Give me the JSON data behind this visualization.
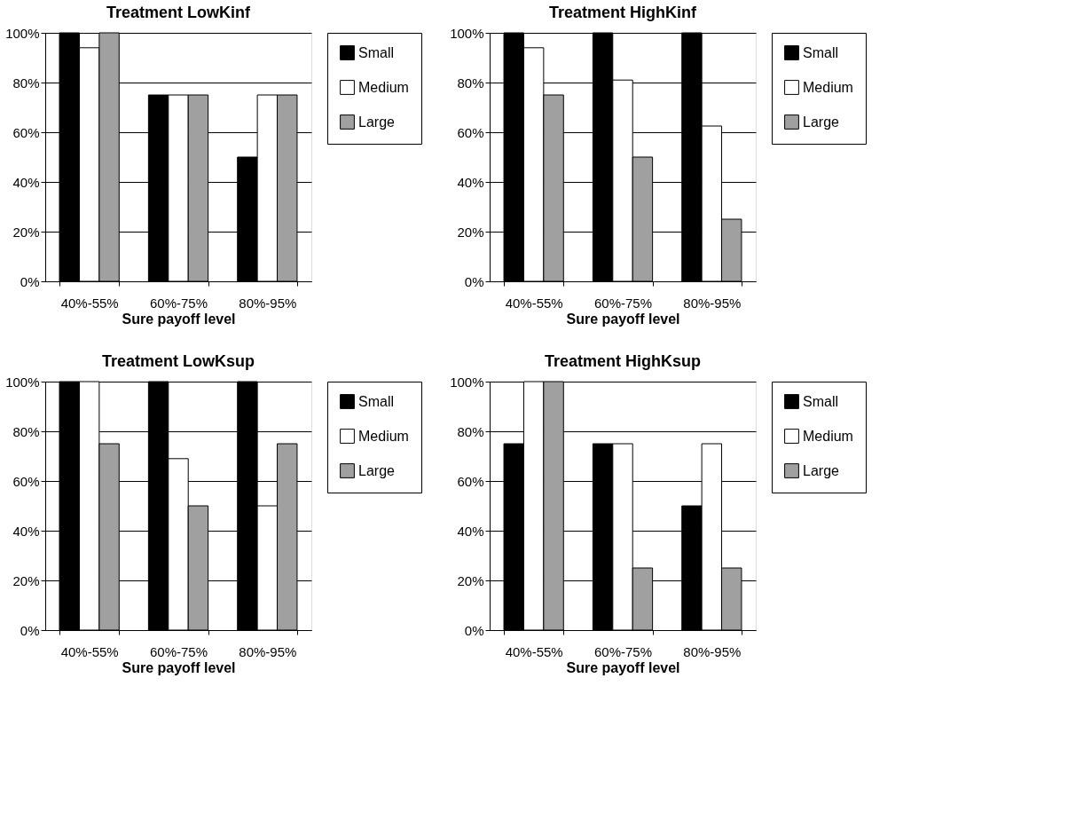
{
  "chart_data": [
    {
      "type": "bar",
      "title": "Treatment LowKinf",
      "xlabel": "Sure payoff level",
      "categories": [
        "40%-55%",
        "60%-75%",
        "80%-95%"
      ],
      "series": [
        {
          "name": "Small",
          "color": "#000000",
          "values": [
            100,
            75,
            50
          ]
        },
        {
          "name": "Medium",
          "color": "#ffffff",
          "values": [
            94,
            75,
            75
          ]
        },
        {
          "name": "Large",
          "color": "#a0a0a0",
          "values": [
            100,
            75,
            75
          ]
        }
      ],
      "ylim": [
        0,
        100
      ],
      "yticks": [
        {
          "value": 0,
          "label": "0%"
        },
        {
          "value": 20,
          "label": "20%"
        },
        {
          "value": 40,
          "label": "40%"
        },
        {
          "value": 60,
          "label": "60%"
        },
        {
          "value": 80,
          "label": "80%"
        },
        {
          "value": 100,
          "label": "100%"
        }
      ],
      "grid": "y",
      "legend": "right"
    },
    {
      "type": "bar",
      "title": "Treatment HighKinf",
      "xlabel": "Sure payoff level",
      "categories": [
        "40%-55%",
        "60%-75%",
        "80%-95%"
      ],
      "series": [
        {
          "name": "Small",
          "color": "#000000",
          "values": [
            100,
            100,
            100
          ]
        },
        {
          "name": "Medium",
          "color": "#ffffff",
          "values": [
            94,
            81,
            62.5
          ]
        },
        {
          "name": "Large",
          "color": "#a0a0a0",
          "values": [
            75,
            50,
            25
          ]
        }
      ],
      "ylim": [
        0,
        100
      ],
      "yticks": [
        {
          "value": 0,
          "label": "0%"
        },
        {
          "value": 20,
          "label": "20%"
        },
        {
          "value": 40,
          "label": "40%"
        },
        {
          "value": 60,
          "label": "60%"
        },
        {
          "value": 80,
          "label": "80%"
        },
        {
          "value": 100,
          "label": "100%"
        }
      ],
      "grid": "y",
      "legend": "right"
    },
    {
      "type": "bar",
      "title": "Treatment LowKsup",
      "xlabel": "Sure payoff level",
      "categories": [
        "40%-55%",
        "60%-75%",
        "80%-95%"
      ],
      "series": [
        {
          "name": "Small",
          "color": "#000000",
          "values": [
            100,
            100,
            100
          ]
        },
        {
          "name": "Medium",
          "color": "#ffffff",
          "values": [
            100,
            69,
            50
          ]
        },
        {
          "name": "Large",
          "color": "#a0a0a0",
          "values": [
            75,
            50,
            75
          ]
        }
      ],
      "ylim": [
        0,
        100
      ],
      "yticks": [
        {
          "value": 0,
          "label": "0%"
        },
        {
          "value": 20,
          "label": "20%"
        },
        {
          "value": 40,
          "label": "40%"
        },
        {
          "value": 60,
          "label": "60%"
        },
        {
          "value": 80,
          "label": "80%"
        },
        {
          "value": 100,
          "label": "100%"
        }
      ],
      "grid": "y",
      "legend": "right"
    },
    {
      "type": "bar",
      "title": "Treatment HighKsup",
      "xlabel": "Sure payoff level",
      "categories": [
        "40%-55%",
        "60%-75%",
        "80%-95%"
      ],
      "series": [
        {
          "name": "Small",
          "color": "#000000",
          "values": [
            75,
            75,
            50
          ]
        },
        {
          "name": "Medium",
          "color": "#ffffff",
          "values": [
            100,
            75,
            75
          ]
        },
        {
          "name": "Large",
          "color": "#a0a0a0",
          "values": [
            100,
            25,
            25
          ]
        }
      ],
      "ylim": [
        0,
        100
      ],
      "yticks": [
        {
          "value": 0,
          "label": "0%"
        },
        {
          "value": 20,
          "label": "20%"
        },
        {
          "value": 40,
          "label": "40%"
        },
        {
          "value": 60,
          "label": "60%"
        },
        {
          "value": 80,
          "label": "80%"
        },
        {
          "value": 100,
          "label": "100%"
        }
      ],
      "grid": "y",
      "legend": "right"
    }
  ]
}
